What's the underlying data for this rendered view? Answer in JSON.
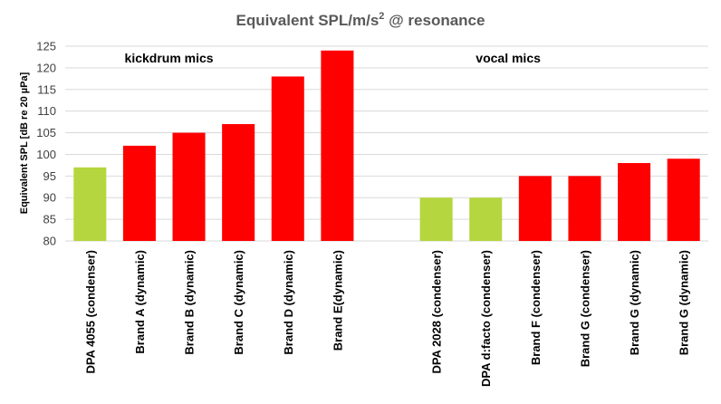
{
  "chart_data": {
    "type": "bar",
    "title": "Equivalent SPL/m/s",
    "title_superscript": "2",
    "title_suffix": " @ resonance",
    "ylabel": "Equivalent  SPL [dB re 20 µPa]",
    "xlabel": "",
    "ylim": [
      80,
      125
    ],
    "yticks": [
      80,
      85,
      90,
      95,
      100,
      105,
      110,
      115,
      120,
      125
    ],
    "grid": true,
    "groups": [
      {
        "label": "kickdrum mics",
        "categories": [
          "DPA 4055 (condenser)",
          "Brand A (dynamic)",
          "Brand B (dynamic)",
          "Brand C (dynamic)",
          "Brand D (dynamic)",
          "Brand E(dynamic)"
        ],
        "values": [
          97,
          102,
          105,
          107,
          118,
          124
        ],
        "colors": [
          "#b5d63e",
          "#ff0000",
          "#ff0000",
          "#ff0000",
          "#ff0000",
          "#ff0000"
        ]
      },
      {
        "label": "vocal mics",
        "categories": [
          "DPA 2028 (condenser)",
          "DPA d:facto (condenser)",
          "Brand F (condenser)",
          "Brand G (condenser)",
          "Brand G (dynamic)",
          "Brand G (dynamic)"
        ],
        "values": [
          90,
          90,
          95,
          95,
          98,
          99
        ],
        "colors": [
          "#b5d63e",
          "#b5d63e",
          "#ff0000",
          "#ff0000",
          "#ff0000",
          "#ff0000"
        ]
      }
    ]
  }
}
